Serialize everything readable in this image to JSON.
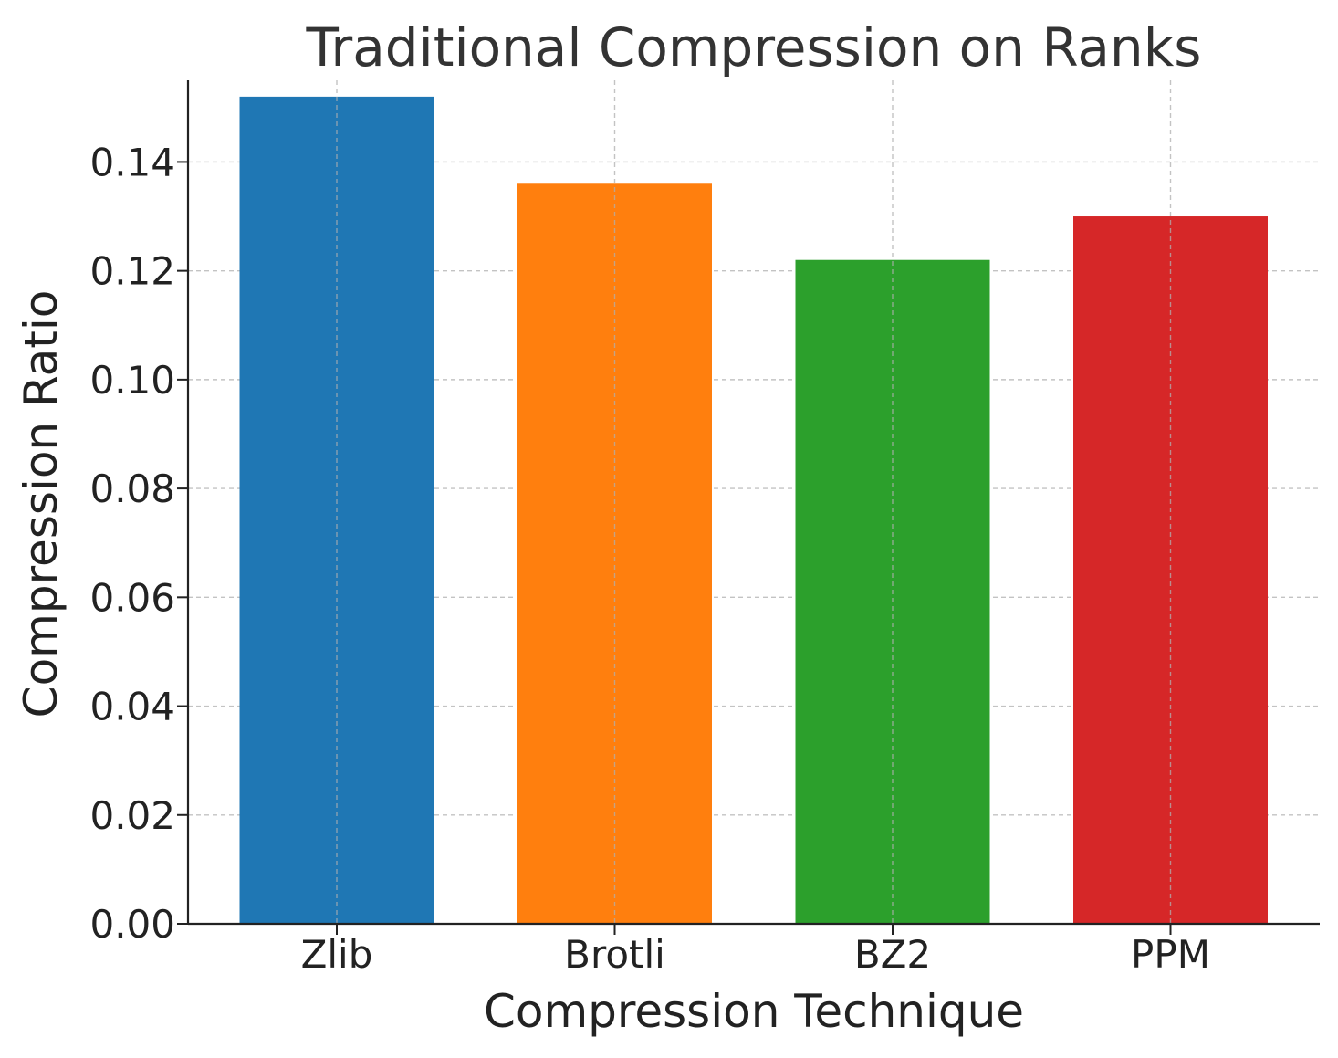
{
  "chart_data": {
    "type": "bar",
    "title": "Traditional Compression on Ranks",
    "xlabel": "Compression Technique",
    "ylabel": "Compression Ratio",
    "categories": [
      "Zlib",
      "Brotli",
      "BZ2",
      "PPM"
    ],
    "values": [
      0.152,
      0.136,
      0.122,
      0.13
    ],
    "colors": [
      "#1f77b4",
      "#ff7f0e",
      "#2ca02c",
      "#d62728"
    ],
    "ylim": [
      0,
      0.155
    ],
    "yticks": [
      0.0,
      0.02,
      0.04,
      0.06,
      0.08,
      0.1,
      0.12,
      0.14
    ],
    "ytick_labels": [
      "0.00",
      "0.02",
      "0.04",
      "0.06",
      "0.08",
      "0.10",
      "0.12",
      "0.14"
    ],
    "grid": true,
    "legend": "none"
  }
}
